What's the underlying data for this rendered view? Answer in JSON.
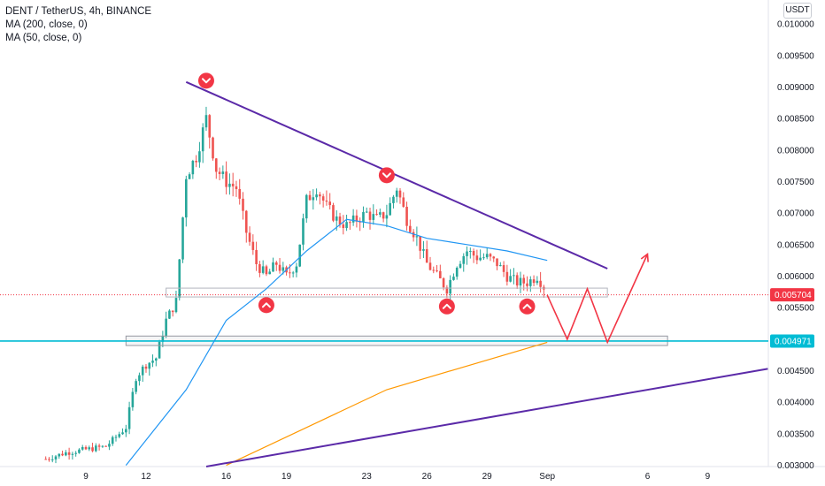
{
  "legend": {
    "symbol": "DENT / TetherUS, 4h, BINANCE",
    "ma200": "MA (200, close, 0)",
    "ma50": "MA (50, close, 0)"
  },
  "currency": "USDT",
  "colors": {
    "up": "#26a69a",
    "down": "#ef5350",
    "ma50": "#2196f3",
    "ma200": "#ff9800",
    "trendline": "#5b2aa8",
    "support": "#00bcd4",
    "projection": "#f23645",
    "price_tag": "#f23645",
    "support_tag": "#00bcd4"
  },
  "chart_data": {
    "type": "candlestick",
    "symbol": "DENT/USDT",
    "timeframe": "4h",
    "exchange": "BINANCE",
    "x_ticks": [
      "9",
      "12",
      "16",
      "19",
      "23",
      "26",
      "29",
      "Sep",
      "6",
      "9"
    ],
    "y_ticks": [
      "0.003000",
      "0.003500",
      "0.004000",
      "0.004500",
      "0.005500",
      "0.006000",
      "0.006500",
      "0.007000",
      "0.007500",
      "0.008000",
      "0.008500",
      "0.009000",
      "0.009500",
      "0.010000"
    ],
    "ylim": [
      0.00298,
      0.01038
    ],
    "last_price": "0.005704",
    "support_level": "0.004971",
    "price_path": [
      [
        "Aug 7",
        0.0031
      ],
      [
        "Aug 8",
        0.0032
      ],
      [
        "Aug 9",
        0.00325
      ],
      [
        "Aug 10",
        0.0033
      ],
      [
        "Aug 11",
        0.0036
      ],
      [
        "Aug 11.5",
        0.0044
      ],
      [
        "Aug 12",
        0.0046
      ],
      [
        "Aug 12.5",
        0.0047
      ],
      [
        "Aug 13",
        0.0053
      ],
      [
        "Aug 13.5",
        0.0056
      ],
      [
        "Aug 14",
        0.0076
      ],
      [
        "Aug 14.5",
        0.0079
      ],
      [
        "Aug 15",
        0.0085
      ],
      [
        "Aug 15.5",
        0.0077
      ],
      [
        "Aug 16",
        0.0075
      ],
      [
        "Aug 16.5",
        0.0074
      ],
      [
        "Aug 17",
        0.0067
      ],
      [
        "Aug 17.5",
        0.0062
      ],
      [
        "Aug 18",
        0.006
      ],
      [
        "Aug 18.5",
        0.0062
      ],
      [
        "Aug 19",
        0.006
      ],
      [
        "Aug 19.5",
        0.0062
      ],
      [
        "Aug 20",
        0.0072
      ],
      [
        "Aug 20.5",
        0.0074
      ],
      [
        "Aug 21",
        0.0071
      ],
      [
        "Aug 21.5",
        0.0069
      ],
      [
        "Aug 22",
        0.0068
      ],
      [
        "Aug 22.5",
        0.0069
      ],
      [
        "Aug 23",
        0.007
      ],
      [
        "Aug 23.5",
        0.0069
      ],
      [
        "Aug 24",
        0.007
      ],
      [
        "Aug 24.5",
        0.0074
      ],
      [
        "Aug 25",
        0.0069
      ],
      [
        "Aug 25.5",
        0.0066
      ],
      [
        "Aug 26",
        0.0062
      ],
      [
        "Aug 26.5",
        0.006
      ],
      [
        "Aug 27",
        0.0058
      ],
      [
        "Aug 27.5",
        0.0062
      ],
      [
        "Aug 28",
        0.0064
      ],
      [
        "Aug 28.5",
        0.0063
      ],
      [
        "Aug 29",
        0.0063
      ],
      [
        "Aug 29.5",
        0.0062
      ],
      [
        "Aug 30",
        0.006
      ],
      [
        "Aug 30.5",
        0.0059
      ],
      [
        "Aug 31",
        0.0059
      ],
      [
        "Aug 31.5",
        0.006
      ],
      [
        "Sep 1",
        0.00575
      ]
    ],
    "ma50_path": [
      [
        "Aug 11",
        0.003
      ],
      [
        "Aug 14",
        0.0042
      ],
      [
        "Aug 16",
        0.0053
      ],
      [
        "Aug 18",
        0.0058
      ],
      [
        "Aug 20",
        0.0064
      ],
      [
        "Aug 22",
        0.0069
      ],
      [
        "Aug 24",
        0.0068
      ],
      [
        "Aug 26",
        0.0066
      ],
      [
        "Aug 28",
        0.0065
      ],
      [
        "Aug 30",
        0.0064
      ],
      [
        "Sep 1",
        0.00625
      ]
    ],
    "ma200_path": [
      [
        "Aug 16",
        0.003
      ],
      [
        "Aug 24",
        0.0042
      ],
      [
        "Sep 1",
        0.00495
      ]
    ],
    "resistance_trendline": [
      [
        "Aug 14",
        0.00908
      ],
      [
        "Sep 4",
        0.00612
      ]
    ],
    "rising_trendline": [
      [
        "Aug 15",
        0.00298
      ],
      [
        "Sep 12",
        0.00453
      ]
    ],
    "horizontal_zones": [
      {
        "from": "Aug 13",
        "to": "Sep 4",
        "low": 0.00567,
        "high": 0.00581
      },
      {
        "from": "Aug 11",
        "to": "Sep 7",
        "low": 0.0049,
        "high": 0.00505
      }
    ],
    "projection_path": [
      [
        "Sep 1",
        0.0057
      ],
      [
        "Sep 2",
        0.005
      ],
      [
        "Sep 3",
        0.0058
      ],
      [
        "Sep 4",
        0.00495
      ],
      [
        "Sep 6",
        0.00635
      ]
    ],
    "markers": [
      {
        "type": "top",
        "date": "Aug 15",
        "price": 0.0091
      },
      {
        "type": "top",
        "date": "Aug 24",
        "price": 0.0076
      },
      {
        "type": "bottom",
        "date": "Aug 18",
        "price": 0.00568
      },
      {
        "type": "bottom",
        "date": "Aug 27",
        "price": 0.00566
      },
      {
        "type": "bottom",
        "date": "Aug 31",
        "price": 0.00566
      }
    ]
  }
}
